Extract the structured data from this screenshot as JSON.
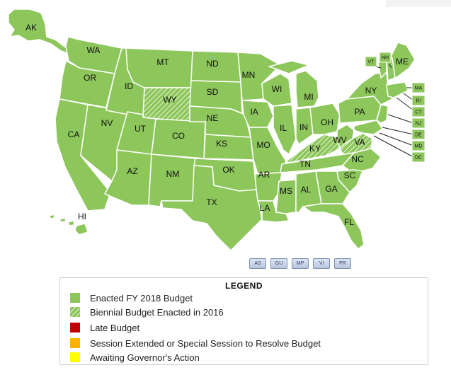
{
  "colors": {
    "enacted": "#8dc65b",
    "border": "#ffffff",
    "late": "#c00000",
    "session_extended": "#ffb300",
    "awaiting": "#ffff00",
    "leader": "#222222"
  },
  "states": {
    "AK": "AK",
    "WA": "WA",
    "OR": "OR",
    "CA": "CA",
    "NV": "NV",
    "ID": "ID",
    "MT": "MT",
    "WY": "WY",
    "UT": "UT",
    "AZ": "AZ",
    "CO": "CO",
    "NM": "NM",
    "ND": "ND",
    "SD": "SD",
    "NE": "NE",
    "KS": "KS",
    "OK": "OK",
    "TX": "TX",
    "MN": "MN",
    "IA": "IA",
    "MO": "MO",
    "AR": "AR",
    "LA": "LA",
    "WI": "WI",
    "IL": "IL",
    "MS": "MS",
    "MI": "MI",
    "IN": "IN",
    "KY": "KY",
    "TN": "TN",
    "AL": "AL",
    "OH": "OH",
    "WV": "WV",
    "VA": "VA",
    "NC": "NC",
    "SC": "SC",
    "GA": "GA",
    "FL": "FL",
    "PA": "PA",
    "NY": "NY",
    "ME": "ME",
    "HI": "HI"
  },
  "small_states": {
    "VT": "VT",
    "NH": "NH",
    "MA": "MA",
    "RI": "RI",
    "CT": "CT",
    "NJ": "NJ",
    "DE": "DE",
    "MD": "MD",
    "DC": "DC"
  },
  "biennial_states": [
    "WY",
    "KY",
    "VA"
  ],
  "territories": [
    "AS",
    "GU",
    "MP",
    "VI",
    "PR"
  ],
  "legend": {
    "title": "LEGEND",
    "items": [
      {
        "label": "Enacted FY 2018 Budget",
        "swatch": "solid",
        "color": "#8dc65b"
      },
      {
        "label": "Biennial Budget Enacted in 2016",
        "swatch": "hatch",
        "color": "#8dc65b"
      },
      {
        "label": "Late Budget",
        "swatch": "solid",
        "color": "#c00000"
      },
      {
        "label": "Session Extended or Special Session to Resolve Budget",
        "swatch": "solid",
        "color": "#ffb300"
      },
      {
        "label": "Awaiting Governor's Action",
        "swatch": "solid",
        "color": "#ffff00"
      }
    ]
  }
}
